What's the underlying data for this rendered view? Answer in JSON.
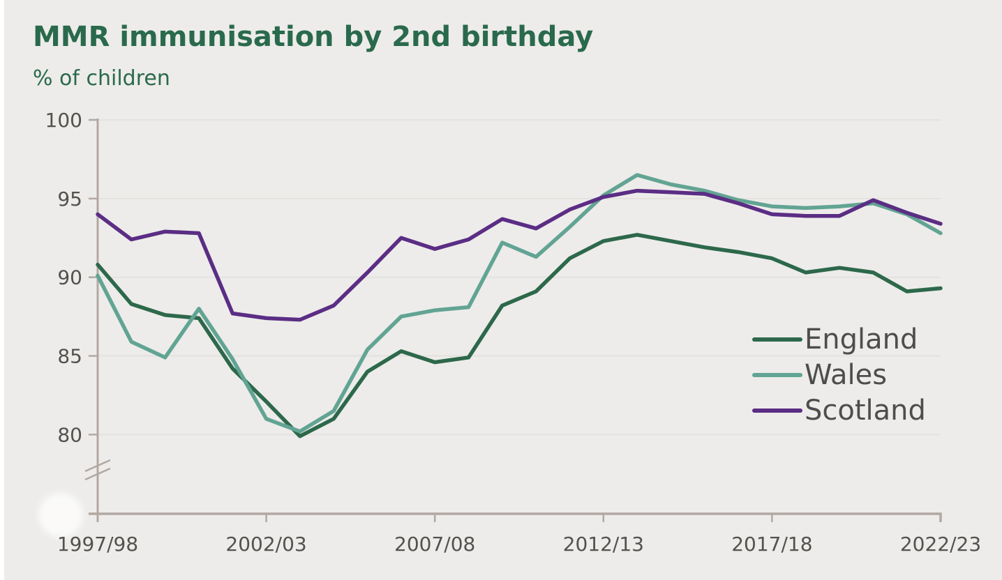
{
  "page": {
    "background": "#edecea",
    "left_edge_strip_color": "#ffffff"
  },
  "header": {
    "title": "MMR immunisation by 2nd birthday",
    "subtitle": "% of children",
    "title_color": "#2a6a4c"
  },
  "legend": {
    "text_color": "#4d4d4d",
    "items": [
      {
        "label": "England",
        "color": "#2d684b"
      },
      {
        "label": "Wales",
        "color": "#62a493"
      },
      {
        "label": "Scotland",
        "color": "#5b2d84"
      }
    ]
  },
  "chart_data": {
    "type": "line",
    "title": "MMR immunisation by 2nd birthday",
    "ylabel": "% of children",
    "grid": true,
    "legend_position": "middle-right",
    "ylim": [
      80,
      100
    ],
    "axis_break": true,
    "y_ticks": [
      100,
      95,
      90,
      85,
      80
    ],
    "x_tick_labels": [
      "1997/98",
      "2002/03",
      "2007/08",
      "2012/13",
      "2017/18",
      "2022/23"
    ],
    "x_tick_indices": [
      0,
      5,
      10,
      15,
      20,
      25
    ],
    "categories": [
      "1997/98",
      "1998/99",
      "1999/00",
      "2000/01",
      "2001/02",
      "2002/03",
      "2003/04",
      "2004/05",
      "2005/06",
      "2006/07",
      "2007/08",
      "2008/09",
      "2009/10",
      "2010/11",
      "2011/12",
      "2012/13",
      "2013/14",
      "2014/15",
      "2015/16",
      "2016/17",
      "2017/18",
      "2018/19",
      "2019/20",
      "2020/21",
      "2021/22",
      "2022/23"
    ],
    "series": [
      {
        "name": "England",
        "color": "#2d684b",
        "values": [
          90.8,
          88.3,
          87.6,
          87.4,
          84.2,
          82.1,
          79.9,
          81.0,
          84.0,
          85.3,
          84.6,
          84.9,
          88.2,
          89.1,
          91.2,
          92.3,
          92.7,
          92.3,
          91.9,
          91.6,
          91.2,
          90.3,
          90.6,
          90.3,
          89.1,
          89.3
        ]
      },
      {
        "name": "Wales",
        "color": "#62a493",
        "values": [
          90.1,
          85.9,
          84.9,
          88.0,
          84.8,
          81.0,
          80.2,
          81.5,
          85.4,
          87.5,
          87.9,
          88.1,
          92.2,
          91.3,
          93.2,
          95.2,
          96.5,
          95.9,
          95.5,
          94.9,
          94.5,
          94.4,
          94.5,
          94.7,
          94.0,
          92.8
        ]
      },
      {
        "name": "Scotland",
        "color": "#5b2d84",
        "values": [
          94.0,
          92.4,
          92.9,
          92.8,
          87.7,
          87.4,
          87.3,
          88.2,
          90.3,
          92.5,
          91.8,
          92.4,
          93.7,
          93.1,
          94.3,
          95.1,
          95.5,
          95.4,
          95.3,
          94.7,
          94.0,
          93.9,
          93.9,
          94.9,
          94.1,
          93.4
        ]
      }
    ],
    "axis_color": "#b2a8a2",
    "grid_color": "#e3e2df",
    "tick_text_color": "#54514e"
  }
}
